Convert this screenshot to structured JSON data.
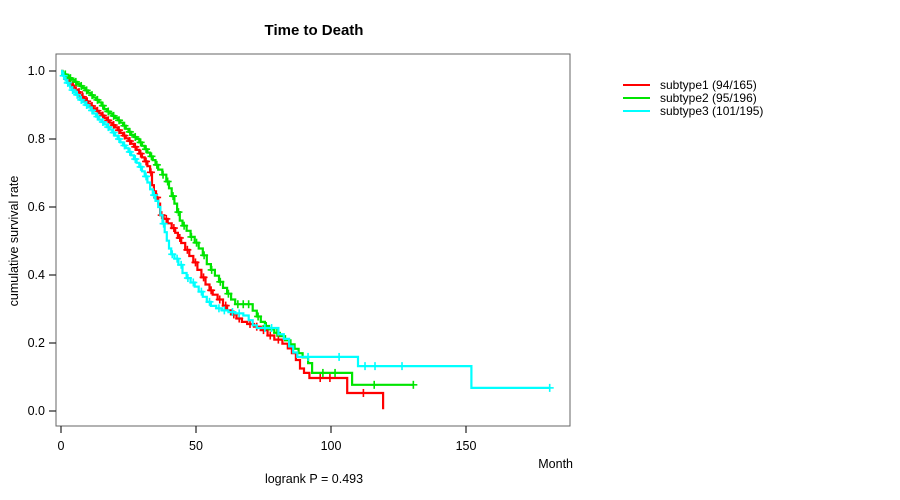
{
  "title": "Time to Death",
  "y_axis_title": "cumulative survival rate",
  "x_axis_title": "Month",
  "footnote": "logrank P = 0.493",
  "legend": {
    "items": [
      {
        "label": "subtype1 (94/165)",
        "color": "#ff0000"
      },
      {
        "label": "subtype2 (95/196)",
        "color": "#00e400"
      },
      {
        "label": "subtype3 (101/195)",
        "color": "#00ffff"
      }
    ]
  },
  "chart_data": {
    "type": "line",
    "variant": "kaplan-meier-step",
    "title": "Time to Death",
    "xlabel": "Month",
    "ylabel": "cumulative survival rate",
    "xlim": [
      0,
      188
    ],
    "ylim": [
      0,
      1
    ],
    "xticks": [
      0,
      50,
      100,
      150
    ],
    "yticks": [
      "0.0",
      "0.2",
      "0.4",
      "0.6",
      "0.8",
      "1.0"
    ],
    "grid": false,
    "legend_position": "right-outside",
    "annotation": "logrank P = 0.493",
    "series": [
      {
        "name": "subtype1 (94/165)",
        "events_over_total": "94/165",
        "color": "#ff0000",
        "steps": [
          [
            0.5,
            0.994
          ],
          [
            1,
            0.988
          ],
          [
            1.5,
            0.982
          ],
          [
            2,
            0.976
          ],
          [
            2.7,
            0.97
          ],
          [
            3.4,
            0.963
          ],
          [
            4.1,
            0.957
          ],
          [
            4.8,
            0.951
          ],
          [
            5.5,
            0.945
          ],
          [
            6.2,
            0.938
          ],
          [
            7,
            0.931
          ],
          [
            7.8,
            0.924
          ],
          [
            8.5,
            0.918
          ],
          [
            9.2,
            0.911
          ],
          [
            10,
            0.904
          ],
          [
            11,
            0.897
          ],
          [
            12,
            0.89
          ],
          [
            13,
            0.883
          ],
          [
            14,
            0.876
          ],
          [
            15,
            0.869
          ],
          [
            16,
            0.862
          ],
          [
            17,
            0.855
          ],
          [
            18,
            0.848
          ],
          [
            19,
            0.841
          ],
          [
            20,
            0.834
          ],
          [
            21,
            0.826
          ],
          [
            22,
            0.818
          ],
          [
            23,
            0.81
          ],
          [
            24,
            0.802
          ],
          [
            25,
            0.794
          ],
          [
            26,
            0.786
          ],
          [
            27,
            0.777
          ],
          [
            28,
            0.768
          ],
          [
            29,
            0.757
          ],
          [
            30,
            0.746
          ],
          [
            31,
            0.734
          ],
          [
            32,
            0.72
          ],
          [
            33,
            0.702
          ],
          [
            33.7,
            0.664
          ],
          [
            34.4,
            0.646
          ],
          [
            35.2,
            0.628
          ],
          [
            36,
            0.61
          ],
          [
            36.7,
            0.576
          ],
          [
            38,
            0.565
          ],
          [
            39.5,
            0.552
          ],
          [
            41,
            0.538
          ],
          [
            42.3,
            0.524
          ],
          [
            43.3,
            0.509
          ],
          [
            44.5,
            0.494
          ],
          [
            46,
            0.474
          ],
          [
            47.5,
            0.456
          ],
          [
            49,
            0.437
          ],
          [
            50.5,
            0.415
          ],
          [
            52,
            0.393
          ],
          [
            53.5,
            0.372
          ],
          [
            55,
            0.355
          ],
          [
            56.2,
            0.342
          ],
          [
            58,
            0.328
          ],
          [
            60,
            0.31
          ],
          [
            61.5,
            0.296
          ],
          [
            63,
            0.284
          ],
          [
            65,
            0.272
          ],
          [
            67,
            0.262
          ],
          [
            69,
            0.256
          ],
          [
            71.5,
            0.248
          ],
          [
            74,
            0.238
          ],
          [
            76.5,
            0.222
          ],
          [
            79,
            0.21
          ],
          [
            82,
            0.198
          ],
          [
            84,
            0.184
          ],
          [
            85.5,
            0.17
          ],
          [
            87,
            0.15
          ],
          [
            88.5,
            0.125
          ],
          [
            90,
            0.112
          ],
          [
            92,
            0.097
          ],
          [
            106,
            0.053
          ],
          [
            119.3,
            0.005
          ]
        ],
        "end_month": 119.3,
        "censor_months": [
          2.3,
          4.5,
          6.7,
          8.1,
          9.7,
          11.5,
          13.5,
          15.5,
          17.5,
          19.5,
          21.5,
          23.5,
          25.5,
          27.5,
          29.5,
          31.5,
          33.3,
          35.6,
          37.3,
          39,
          41.8,
          44,
          46.8,
          49.8,
          52.8,
          55.6,
          58.8,
          61,
          64,
          66,
          70,
          72.5,
          75,
          77.5,
          80.5,
          96,
          99.6,
          112
        ]
      },
      {
        "name": "subtype2 (95/196)",
        "events_over_total": "95/196",
        "color": "#00e400",
        "steps": [
          [
            0.6,
            0.995
          ],
          [
            1.2,
            0.99
          ],
          [
            2,
            0.985
          ],
          [
            3,
            0.979
          ],
          [
            4,
            0.974
          ],
          [
            5,
            0.968
          ],
          [
            6,
            0.962
          ],
          [
            7,
            0.956
          ],
          [
            8,
            0.95
          ],
          [
            9,
            0.943
          ],
          [
            10,
            0.936
          ],
          [
            11,
            0.929
          ],
          [
            12,
            0.922
          ],
          [
            13,
            0.915
          ],
          [
            14,
            0.908
          ],
          [
            15,
            0.898
          ],
          [
            16,
            0.888
          ],
          [
            17,
            0.881
          ],
          [
            18,
            0.875
          ],
          [
            19,
            0.868
          ],
          [
            20,
            0.862
          ],
          [
            21,
            0.855
          ],
          [
            22,
            0.848
          ],
          [
            23,
            0.839
          ],
          [
            24,
            0.83
          ],
          [
            25,
            0.821
          ],
          [
            26,
            0.812
          ],
          [
            27,
            0.806
          ],
          [
            28,
            0.8
          ],
          [
            29,
            0.79
          ],
          [
            30,
            0.78
          ],
          [
            31,
            0.77
          ],
          [
            32,
            0.76
          ],
          [
            33,
            0.749
          ],
          [
            34,
            0.738
          ],
          [
            35,
            0.724
          ],
          [
            36,
            0.71
          ],
          [
            37.5,
            0.695
          ],
          [
            39,
            0.675
          ],
          [
            40,
            0.655
          ],
          [
            41,
            0.632
          ],
          [
            42,
            0.61
          ],
          [
            43,
            0.585
          ],
          [
            44,
            0.56
          ],
          [
            45,
            0.545
          ],
          [
            46.5,
            0.53
          ],
          [
            48,
            0.512
          ],
          [
            49.5,
            0.495
          ],
          [
            51,
            0.478
          ],
          [
            52.5,
            0.458
          ],
          [
            54,
            0.432
          ],
          [
            55.5,
            0.415
          ],
          [
            57,
            0.398
          ],
          [
            58.5,
            0.38
          ],
          [
            60,
            0.362
          ],
          [
            61.5,
            0.345
          ],
          [
            63,
            0.328
          ],
          [
            64.5,
            0.314
          ],
          [
            71,
            0.295
          ],
          [
            72.5,
            0.278
          ],
          [
            74,
            0.262
          ],
          [
            75.5,
            0.25
          ],
          [
            77,
            0.24
          ],
          [
            79,
            0.23
          ],
          [
            81,
            0.22
          ],
          [
            83,
            0.208
          ],
          [
            85,
            0.196
          ],
          [
            86.5,
            0.183
          ],
          [
            88,
            0.17
          ],
          [
            89.5,
            0.158
          ],
          [
            91.5,
            0.141
          ],
          [
            93,
            0.112
          ],
          [
            107.8,
            0.077
          ]
        ],
        "end_month": 130.5,
        "censor_months": [
          1.6,
          3.5,
          5.5,
          7.5,
          9.5,
          11.5,
          13.5,
          15.5,
          17.5,
          19.5,
          21.5,
          23.5,
          25.5,
          27.5,
          29.5,
          31.5,
          33.5,
          35.5,
          37.8,
          39.5,
          41.5,
          43.5,
          45.6,
          48.3,
          50.2,
          53,
          55.8,
          59,
          62,
          65.5,
          67.5,
          69.5,
          73,
          76,
          80,
          97,
          101.5,
          116,
          130.5
        ]
      },
      {
        "name": "subtype3 (101/195)",
        "events_over_total": "101/195",
        "color": "#00ffff",
        "steps": [
          [
            0.4,
            0.993
          ],
          [
            0.8,
            0.986
          ],
          [
            1.2,
            0.979
          ],
          [
            1.7,
            0.972
          ],
          [
            2.2,
            0.965
          ],
          [
            2.8,
            0.958
          ],
          [
            3.4,
            0.951
          ],
          [
            4,
            0.944
          ],
          [
            4.7,
            0.937
          ],
          [
            5.4,
            0.93
          ],
          [
            6.2,
            0.922
          ],
          [
            7,
            0.915
          ],
          [
            8,
            0.908
          ],
          [
            9,
            0.9
          ],
          [
            10,
            0.893
          ],
          [
            11,
            0.884
          ],
          [
            12,
            0.875
          ],
          [
            13,
            0.866
          ],
          [
            14,
            0.857
          ],
          [
            15,
            0.85
          ],
          [
            16,
            0.843
          ],
          [
            17,
            0.835
          ],
          [
            18,
            0.828
          ],
          [
            19,
            0.819
          ],
          [
            20,
            0.81
          ],
          [
            21,
            0.8
          ],
          [
            22,
            0.79
          ],
          [
            23,
            0.781
          ],
          [
            24,
            0.773
          ],
          [
            25,
            0.762
          ],
          [
            26,
            0.752
          ],
          [
            27,
            0.741
          ],
          [
            28,
            0.73
          ],
          [
            29,
            0.718
          ],
          [
            30,
            0.705
          ],
          [
            31,
            0.69
          ],
          [
            32,
            0.672
          ],
          [
            33,
            0.652
          ],
          [
            34,
            0.635
          ],
          [
            35,
            0.618
          ],
          [
            36,
            0.6
          ],
          [
            36.8,
            0.576
          ],
          [
            37.6,
            0.551
          ],
          [
            38.4,
            0.526
          ],
          [
            39.2,
            0.501
          ],
          [
            40,
            0.478
          ],
          [
            40.8,
            0.461
          ],
          [
            42,
            0.448
          ],
          [
            43.5,
            0.43
          ],
          [
            45,
            0.406
          ],
          [
            46.5,
            0.391
          ],
          [
            48,
            0.378
          ],
          [
            49.5,
            0.366
          ],
          [
            51,
            0.351
          ],
          [
            52.5,
            0.336
          ],
          [
            54,
            0.321
          ],
          [
            55.5,
            0.309
          ],
          [
            57.5,
            0.302
          ],
          [
            59.5,
            0.296
          ],
          [
            62,
            0.291
          ],
          [
            64.5,
            0.287
          ],
          [
            67.5,
            0.281
          ],
          [
            69.5,
            0.267
          ],
          [
            71,
            0.252
          ],
          [
            72.5,
            0.244
          ],
          [
            80.5,
            0.226
          ],
          [
            82.5,
            0.212
          ],
          [
            84.5,
            0.19
          ],
          [
            86,
            0.172
          ],
          [
            87.5,
            0.159
          ],
          [
            110,
            0.132
          ],
          [
            152,
            0.068
          ]
        ],
        "end_month": 181,
        "censor_months": [
          1.0,
          2.5,
          4.3,
          6,
          7.5,
          9.5,
          11.5,
          13.5,
          15.5,
          17.5,
          19.5,
          21.5,
          23.5,
          25.5,
          27.5,
          29.5,
          31.5,
          34.5,
          38,
          41.2,
          43,
          44.5,
          47,
          49,
          52,
          55,
          58.5,
          60.5,
          63.5,
          66,
          75.5,
          78,
          91.5,
          103,
          112.6,
          116.3,
          126.3,
          181
        ]
      }
    ]
  }
}
